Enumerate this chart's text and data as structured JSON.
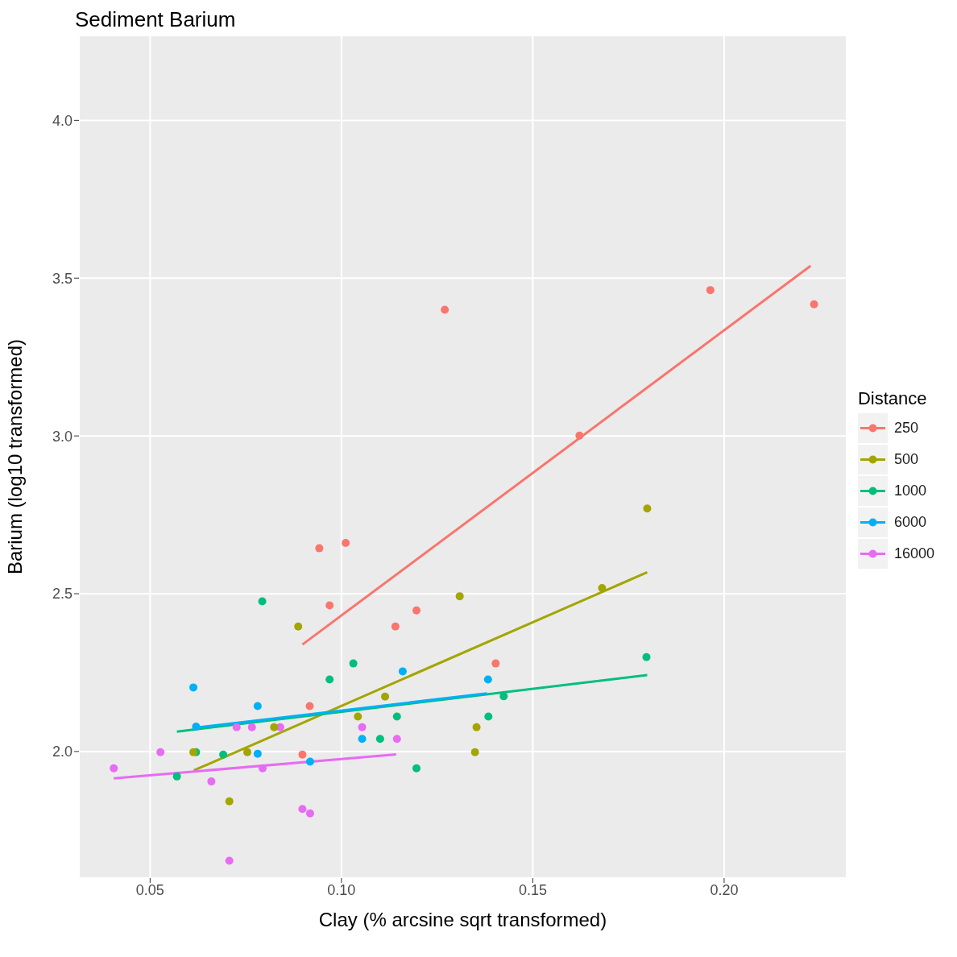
{
  "chart_data": {
    "type": "scatter",
    "title": "Sediment Barium",
    "xlabel": "Clay (% arcsine sqrt transformed)",
    "ylabel": "Barium (log10 transformed)",
    "legend_title": "Distance",
    "legend": "right",
    "grid": true,
    "marker": "circle",
    "xlim": [
      0.0314,
      0.232
    ],
    "ylim": [
      1.599,
      4.269
    ],
    "xticks": [
      {
        "value": 0.05,
        "label": "0.05"
      },
      {
        "value": 0.1,
        "label": "0.10"
      },
      {
        "value": 0.15,
        "label": "0.15"
      },
      {
        "value": 0.2,
        "label": "0.20"
      }
    ],
    "yticks": [
      {
        "value": 2,
        "label": "2.0"
      },
      {
        "value": 2.5,
        "label": "2.5"
      },
      {
        "value": 3,
        "label": "3.0"
      },
      {
        "value": 3.5,
        "label": "3.5"
      },
      {
        "value": 4,
        "label": "4.0"
      }
    ],
    "series": [
      {
        "name": "250",
        "color": "#f8766d",
        "x": [
          0.0969,
          0.1196,
          0.1141,
          0.1403,
          0.0917,
          0.0898,
          0.0942,
          0.1011,
          0.127,
          0.1622,
          0.1964,
          0.2235
        ],
        "values": [
          2.463,
          2.447,
          2.396,
          2.279,
          2.144,
          1.99,
          2.644,
          2.661,
          3.4,
          3.001,
          3.462,
          3.417
        ]
      },
      {
        "name": "500",
        "color": "#a3a500",
        "x": [
          0.0887,
          0.1309,
          0.1114,
          0.1043,
          0.0824,
          0.1353,
          0.0613,
          0.0754,
          0.1349,
          0.0707,
          0.1681,
          0.1799
        ],
        "values": [
          2.396,
          2.492,
          2.174,
          2.111,
          2.077,
          2.077,
          1.998,
          1.998,
          1.998,
          1.842,
          2.518,
          2.77
        ]
      },
      {
        "name": "1000",
        "color": "#00bf7d",
        "x": [
          0.0793,
          0.1031,
          0.0969,
          0.1145,
          0.1101,
          0.1196,
          0.1384,
          0.1424,
          0.062,
          0.0691,
          0.057,
          0.1797
        ],
        "values": [
          2.476,
          2.279,
          2.228,
          2.111,
          2.04,
          1.947,
          2.111,
          2.175,
          1.998,
          1.99,
          1.921,
          2.299
        ]
      },
      {
        "name": "6000",
        "color": "#00b0f6",
        "x": [
          0.0613,
          0.0781,
          0.116,
          0.1383,
          0.062,
          0.1054,
          0.0781,
          0.0918
        ],
        "values": [
          2.203,
          2.144,
          2.254,
          2.228,
          2.079,
          2.04,
          1.993,
          1.968
        ]
      },
      {
        "name": "16000",
        "color": "#e76bf3",
        "x": [
          0.0405,
          0.0527,
          0.0726,
          0.0766,
          0.084,
          0.1054,
          0.1145,
          0.0794,
          0.066,
          0.0898,
          0.0918,
          0.0707
        ],
        "values": [
          1.947,
          1.998,
          2.077,
          2.077,
          2.077,
          2.077,
          2.04,
          1.947,
          1.905,
          1.818,
          1.804,
          1.654
        ]
      },
      {
        "type": "line",
        "marker": "none",
        "color": "#f8766d",
        "x": [
          0.0898,
          0.2226
        ],
        "values": [
          2.339,
          3.539
        ]
      },
      {
        "type": "line",
        "marker": "none",
        "color": "#a3a500",
        "x": [
          0.0614,
          0.1799
        ],
        "values": [
          1.94,
          2.568
        ]
      },
      {
        "type": "line",
        "marker": "none",
        "color": "#00bf7d",
        "x": [
          0.057,
          0.1799
        ],
        "values": [
          2.063,
          2.242
        ]
      },
      {
        "type": "line",
        "marker": "none",
        "color": "#00b0f6",
        "x": [
          0.0614,
          0.138
        ],
        "values": [
          2.075,
          2.184
        ]
      },
      {
        "type": "line",
        "marker": "none",
        "color": "#e76bf3",
        "x": [
          0.0405,
          0.1143
        ],
        "values": [
          1.915,
          1.991
        ]
      }
    ]
  }
}
